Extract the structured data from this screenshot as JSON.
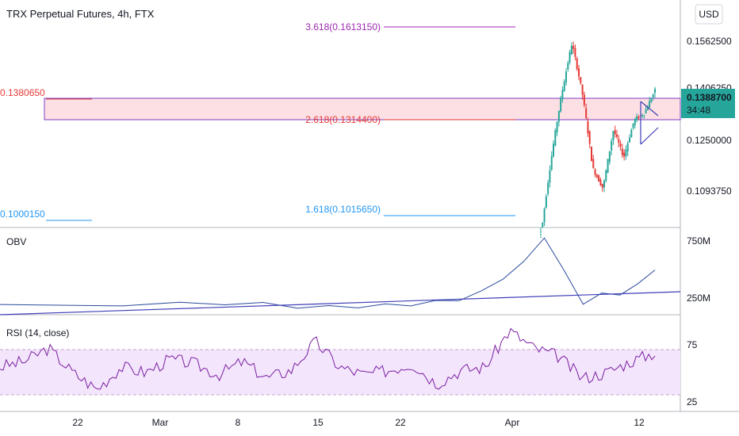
{
  "header": {
    "title": "TRX Perpetual Futures, 4h, FTX",
    "currency_button": "USD"
  },
  "colors": {
    "purple": "#9c27b0",
    "red": "#e53935",
    "blue": "#2196f3",
    "teal": "#26a69a",
    "indigo": "#3f3fb8",
    "obv_line": "#2a4b9b",
    "rsi_line": "#7b1fa2",
    "zone_fill": "#fde0e3",
    "rsi_band": "#f3e5fb"
  },
  "price_panel": {
    "price_ticks": [
      "0.1562500",
      "0.1250000",
      "0.1093750"
    ],
    "hidden_tick": "0.1406250",
    "last_price_badge": "0.1388700",
    "countdown": "34:48",
    "fib_levels": [
      {
        "label": "3.618(0.1613150)",
        "color": "#9c27b0"
      },
      {
        "label": "2.618(0.1314400)",
        "color": "#e53935"
      },
      {
        "label": "1.618(0.1015650)",
        "color": "#2196f3"
      }
    ],
    "left_labels": [
      {
        "label": "0.1380650",
        "color": "#e53935"
      },
      {
        "label": "0.1000150",
        "color": "#2196f3"
      }
    ]
  },
  "obv_panel": {
    "label": "OBV",
    "ticks": [
      "750M",
      "250M"
    ]
  },
  "rsi_panel": {
    "label": "RSI (14, close)",
    "ticks": [
      "75",
      "25"
    ]
  },
  "time_axis": {
    "labels": [
      "22",
      "Mar",
      "8",
      "15",
      "22",
      "Apr",
      "12"
    ]
  },
  "chart_data": [
    {
      "type": "candlestick",
      "title": "TRX Perpetual Futures, 4h, FTX",
      "y_scale": "log",
      "y_ticks": [
        0.15625,
        0.125,
        0.109375
      ],
      "last_price": 0.13887,
      "zone": [
        0.13144,
        0.138065
      ],
      "fib_levels": [
        1.618,
        2.618,
        3.618
      ],
      "fib_values": [
        0.101565,
        0.13144,
        0.161315
      ],
      "price_path": [
        [
          "Apr",
          0.098
        ],
        [
          "Apr",
          0.118
        ],
        [
          "Apr",
          0.1375
        ],
        [
          "Apr",
          0.1555
        ],
        [
          "Apr",
          0.138
        ],
        [
          "Apr",
          0.1155
        ],
        [
          "Apr",
          0.11
        ],
        [
          "Apr",
          0.1265
        ],
        [
          "Apr",
          0.1185
        ],
        [
          "12",
          0.1295
        ],
        [
          "12",
          0.1318
        ],
        [
          "12",
          0.13887
        ]
      ],
      "x_labels": [
        "22",
        "Mar",
        "8",
        "15",
        "22",
        "Apr",
        "12"
      ]
    },
    {
      "type": "line",
      "title": "OBV",
      "y_ticks": [
        "750M",
        "250M"
      ],
      "series": [
        {
          "values": [
            180,
            195,
            200,
            205,
            198,
            175,
            170,
            178,
            185,
            195,
            215,
            240,
            300,
            430,
            560,
            790,
            480,
            210,
            280,
            290,
            360,
            510
          ]
        }
      ]
    },
    {
      "type": "line",
      "title": "RSI (14, close)",
      "y_ticks": [
        75,
        25
      ],
      "band": [
        30,
        70
      ],
      "series": [
        {
          "values": [
            55,
            60,
            72,
            50,
            35,
            55,
            50,
            62,
            58,
            48,
            60,
            45,
            52,
            78,
            55,
            48,
            52,
            58,
            40,
            52,
            55,
            88,
            72,
            65,
            45,
            50,
            60,
            68
          ]
        }
      ]
    }
  ]
}
